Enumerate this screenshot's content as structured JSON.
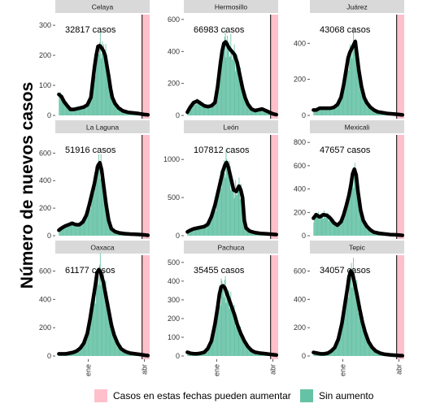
{
  "chart_data": {
    "type": "bar",
    "ylabel": "Número de nuevos casos",
    "xlabel": "",
    "x_tick_labels": [
      "ene",
      "abr"
    ],
    "legend": {
      "position": "bottom",
      "entries": [
        {
          "label": "Casos en estas fechas pueden aumentar",
          "color": "#FFC0CB"
        },
        {
          "label": "Sin aumento",
          "color": "#66C2A5"
        }
      ]
    },
    "colors": {
      "bars": "#66C2A5",
      "recent": "#FFC0CB",
      "trend": "#000000",
      "strip": "#D9D9D9"
    },
    "panels": [
      {
        "name": "Celaya",
        "annotation": "32817 casos",
        "ylim": [
          0,
          330
        ],
        "yticks": [
          0,
          100,
          200,
          300
        ],
        "series": [
          [
            -1,
            70
          ],
          [
            0.03,
            62
          ],
          [
            0.06,
            45
          ],
          [
            0.1,
            30
          ],
          [
            0.13,
            20
          ],
          [
            0.17,
            20
          ],
          [
            0.2,
            22
          ],
          [
            0.24,
            25
          ],
          [
            0.28,
            28
          ],
          [
            0.32,
            35
          ],
          [
            0.36,
            60
          ],
          [
            0.38,
            110
          ],
          [
            0.4,
            160
          ],
          [
            0.42,
            200
          ],
          [
            0.44,
            230
          ],
          [
            0.46,
            232
          ],
          [
            0.48,
            225
          ],
          [
            0.5,
            215
          ],
          [
            0.52,
            200
          ],
          [
            0.54,
            165
          ],
          [
            0.56,
            130
          ],
          [
            0.58,
            90
          ],
          [
            0.6,
            60
          ],
          [
            0.63,
            40
          ],
          [
            0.67,
            25
          ],
          [
            0.72,
            15
          ],
          [
            0.78,
            10
          ],
          [
            0.84,
            8
          ],
          [
            0.9,
            6
          ],
          [
            0.96,
            3
          ],
          [
            1,
            2
          ]
        ]
      },
      {
        "name": "Hermosillo",
        "annotation": "66983 casos",
        "ylim": [
          0,
          620
        ],
        "yticks": [
          0,
          200,
          400,
          600
        ],
        "series": [
          [
            -1,
            20
          ],
          [
            0.03,
            50
          ],
          [
            0.07,
            80
          ],
          [
            0.11,
            90
          ],
          [
            0.15,
            75
          ],
          [
            0.19,
            60
          ],
          [
            0.23,
            55
          ],
          [
            0.27,
            60
          ],
          [
            0.31,
            80
          ],
          [
            0.34,
            180
          ],
          [
            0.37,
            320
          ],
          [
            0.39,
            400
          ],
          [
            0.41,
            450
          ],
          [
            0.43,
            460
          ],
          [
            0.45,
            440
          ],
          [
            0.47,
            420
          ],
          [
            0.5,
            400
          ],
          [
            0.53,
            380
          ],
          [
            0.56,
            330
          ],
          [
            0.59,
            250
          ],
          [
            0.62,
            170
          ],
          [
            0.65,
            110
          ],
          [
            0.68,
            70
          ],
          [
            0.72,
            40
          ],
          [
            0.76,
            30
          ],
          [
            0.8,
            35
          ],
          [
            0.84,
            40
          ],
          [
            0.88,
            30
          ],
          [
            0.92,
            20
          ],
          [
            0.96,
            10
          ],
          [
            1,
            5
          ]
        ]
      },
      {
        "name": "Juárez",
        "annotation": "43068 casos",
        "ylim": [
          0,
          550
        ],
        "yticks": [
          0,
          200,
          400
        ],
        "series": [
          [
            -1,
            30
          ],
          [
            0.03,
            30
          ],
          [
            0.07,
            40
          ],
          [
            0.11,
            40
          ],
          [
            0.15,
            40
          ],
          [
            0.19,
            40
          ],
          [
            0.23,
            45
          ],
          [
            0.27,
            60
          ],
          [
            0.31,
            100
          ],
          [
            0.34,
            170
          ],
          [
            0.37,
            260
          ],
          [
            0.39,
            320
          ],
          [
            0.41,
            350
          ],
          [
            0.43,
            370
          ],
          [
            0.45,
            390
          ],
          [
            0.47,
            410
          ],
          [
            0.49,
            330
          ],
          [
            0.51,
            250
          ],
          [
            0.54,
            160
          ],
          [
            0.57,
            100
          ],
          [
            0.6,
            70
          ],
          [
            0.64,
            45
          ],
          [
            0.68,
            30
          ],
          [
            0.72,
            20
          ],
          [
            0.78,
            15
          ],
          [
            0.84,
            10
          ],
          [
            0.9,
            8
          ],
          [
            0.96,
            5
          ],
          [
            1,
            3
          ]
        ]
      },
      {
        "name": "La Laguna",
        "annotation": "51916 casos",
        "ylim": [
          0,
          720
        ],
        "yticks": [
          0,
          200,
          400,
          600
        ],
        "series": [
          [
            -1,
            40
          ],
          [
            0.03,
            55
          ],
          [
            0.07,
            70
          ],
          [
            0.11,
            80
          ],
          [
            0.15,
            90
          ],
          [
            0.19,
            80
          ],
          [
            0.23,
            80
          ],
          [
            0.27,
            100
          ],
          [
            0.31,
            150
          ],
          [
            0.34,
            220
          ],
          [
            0.37,
            300
          ],
          [
            0.4,
            380
          ],
          [
            0.42,
            450
          ],
          [
            0.44,
            510
          ],
          [
            0.46,
            530
          ],
          [
            0.48,
            480
          ],
          [
            0.5,
            380
          ],
          [
            0.53,
            230
          ],
          [
            0.56,
            110
          ],
          [
            0.59,
            50
          ],
          [
            0.63,
            30
          ],
          [
            0.68,
            20
          ],
          [
            0.74,
            15
          ],
          [
            0.8,
            12
          ],
          [
            0.86,
            10
          ],
          [
            0.92,
            8
          ],
          [
            0.97,
            5
          ],
          [
            1,
            3
          ]
        ]
      },
      {
        "name": "León",
        "annotation": "107812 casos",
        "ylim": [
          0,
          1300
        ],
        "yticks": [
          0,
          500,
          1000
        ],
        "series": [
          [
            -1,
            50
          ],
          [
            0.03,
            70
          ],
          [
            0.07,
            90
          ],
          [
            0.11,
            100
          ],
          [
            0.15,
            110
          ],
          [
            0.19,
            120
          ],
          [
            0.23,
            150
          ],
          [
            0.27,
            250
          ],
          [
            0.31,
            400
          ],
          [
            0.34,
            550
          ],
          [
            0.37,
            700
          ],
          [
            0.4,
            850
          ],
          [
            0.42,
            920
          ],
          [
            0.44,
            960
          ],
          [
            0.46,
            900
          ],
          [
            0.49,
            750
          ],
          [
            0.52,
            600
          ],
          [
            0.55,
            580
          ],
          [
            0.58,
            650
          ],
          [
            0.6,
            600
          ],
          [
            0.62,
            500
          ],
          [
            0.64,
            200
          ],
          [
            0.66,
            100
          ],
          [
            0.7,
            60
          ],
          [
            0.76,
            40
          ],
          [
            0.82,
            30
          ],
          [
            0.88,
            25
          ],
          [
            0.94,
            20
          ],
          [
            1,
            15
          ]
        ]
      },
      {
        "name": "Mexicali",
        "annotation": "47657 casos",
        "ylim": [
          0,
          850
        ],
        "yticks": [
          0,
          200,
          400,
          600,
          800
        ],
        "series": [
          [
            -1,
            150
          ],
          [
            0.03,
            180
          ],
          [
            0.07,
            160
          ],
          [
            0.11,
            180
          ],
          [
            0.15,
            175
          ],
          [
            0.19,
            150
          ],
          [
            0.23,
            110
          ],
          [
            0.27,
            90
          ],
          [
            0.31,
            120
          ],
          [
            0.34,
            180
          ],
          [
            0.37,
            260
          ],
          [
            0.4,
            350
          ],
          [
            0.42,
            430
          ],
          [
            0.44,
            530
          ],
          [
            0.46,
            570
          ],
          [
            0.48,
            520
          ],
          [
            0.5,
            380
          ],
          [
            0.53,
            220
          ],
          [
            0.56,
            130
          ],
          [
            0.6,
            80
          ],
          [
            0.64,
            50
          ],
          [
            0.68,
            30
          ],
          [
            0.74,
            20
          ],
          [
            0.8,
            15
          ],
          [
            0.86,
            10
          ],
          [
            0.92,
            8
          ],
          [
            0.97,
            5
          ],
          [
            1,
            3
          ]
        ]
      },
      {
        "name": "Oaxaca",
        "annotation": "61177 casos",
        "ylim": [
          0,
          700
        ],
        "yticks": [
          0,
          200,
          400,
          600
        ],
        "series": [
          [
            -1,
            15
          ],
          [
            0.04,
            15
          ],
          [
            0.08,
            15
          ],
          [
            0.12,
            20
          ],
          [
            0.16,
            25
          ],
          [
            0.2,
            35
          ],
          [
            0.24,
            55
          ],
          [
            0.28,
            90
          ],
          [
            0.32,
            160
          ],
          [
            0.35,
            260
          ],
          [
            0.38,
            380
          ],
          [
            0.41,
            500
          ],
          [
            0.43,
            590
          ],
          [
            0.45,
            610
          ],
          [
            0.47,
            590
          ],
          [
            0.5,
            520
          ],
          [
            0.53,
            420
          ],
          [
            0.56,
            320
          ],
          [
            0.59,
            220
          ],
          [
            0.62,
            150
          ],
          [
            0.66,
            90
          ],
          [
            0.7,
            50
          ],
          [
            0.75,
            30
          ],
          [
            0.8,
            20
          ],
          [
            0.86,
            15
          ],
          [
            0.92,
            10
          ],
          [
            0.97,
            5
          ],
          [
            1,
            3
          ]
        ]
      },
      {
        "name": "Pachuca",
        "annotation": "35455 casos",
        "ylim": [
          0,
          530
        ],
        "yticks": [
          0,
          100,
          200,
          300,
          400,
          500
        ],
        "series": [
          [
            -1,
            20
          ],
          [
            0.03,
            15
          ],
          [
            0.07,
            12
          ],
          [
            0.11,
            12
          ],
          [
            0.15,
            15
          ],
          [
            0.19,
            20
          ],
          [
            0.23,
            40
          ],
          [
            0.27,
            80
          ],
          [
            0.31,
            170
          ],
          [
            0.34,
            260
          ],
          [
            0.36,
            330
          ],
          [
            0.38,
            370
          ],
          [
            0.4,
            375
          ],
          [
            0.42,
            365
          ],
          [
            0.44,
            340
          ],
          [
            0.47,
            300
          ],
          [
            0.5,
            260
          ],
          [
            0.53,
            220
          ],
          [
            0.56,
            170
          ],
          [
            0.6,
            120
          ],
          [
            0.64,
            80
          ],
          [
            0.68,
            50
          ],
          [
            0.72,
            30
          ],
          [
            0.76,
            20
          ],
          [
            0.82,
            15
          ],
          [
            0.88,
            12
          ],
          [
            0.94,
            8
          ],
          [
            1,
            5
          ]
        ]
      },
      {
        "name": "Tepic",
        "annotation": "34057 casos",
        "ylim": [
          0,
          700
        ],
        "yticks": [
          0,
          200,
          400,
          600
        ],
        "series": [
          [
            -1,
            25
          ],
          [
            0.04,
            20
          ],
          [
            0.08,
            15
          ],
          [
            0.12,
            15
          ],
          [
            0.16,
            20
          ],
          [
            0.2,
            35
          ],
          [
            0.24,
            60
          ],
          [
            0.28,
            120
          ],
          [
            0.32,
            230
          ],
          [
            0.35,
            350
          ],
          [
            0.38,
            470
          ],
          [
            0.4,
            560
          ],
          [
            0.42,
            600
          ],
          [
            0.44,
            580
          ],
          [
            0.46,
            520
          ],
          [
            0.49,
            430
          ],
          [
            0.52,
            330
          ],
          [
            0.55,
            240
          ],
          [
            0.58,
            170
          ],
          [
            0.62,
            100
          ],
          [
            0.66,
            60
          ],
          [
            0.7,
            35
          ],
          [
            0.75,
            20
          ],
          [
            0.8,
            12
          ],
          [
            0.86,
            8
          ],
          [
            0.92,
            5
          ],
          [
            0.97,
            3
          ],
          [
            1,
            2
          ]
        ]
      }
    ]
  }
}
